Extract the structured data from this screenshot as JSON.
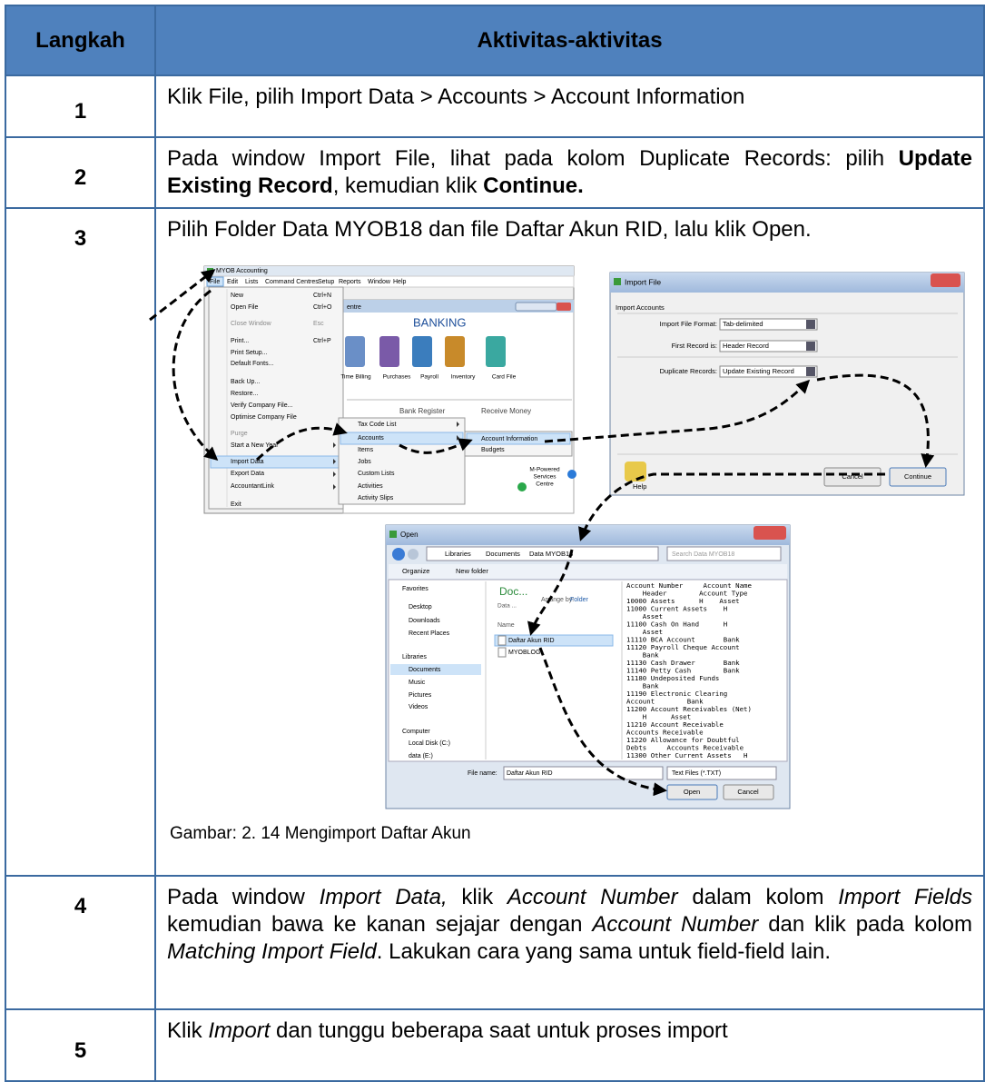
{
  "header": {
    "col1": "Langkah",
    "col2": "Aktivitas-aktivitas"
  },
  "rows": [
    {
      "step": "1",
      "content": [
        {
          "text": "Klik File, pilih Import Data > Accounts  > Account Information"
        }
      ]
    },
    {
      "step": "2",
      "content": [
        {
          "text": "Pada window Import File, lihat pada kolom Duplicate Records: pilih "
        },
        {
          "text": "Update Existing Record",
          "bold": true
        },
        {
          "text": ", kemudian klik "
        },
        {
          "text": "Continue.",
          "bold": true
        }
      ]
    },
    {
      "step": "3",
      "content": [
        {
          "text": "Pilih Folder Data MYOB18 dan file Daftar Akun RID, lalu klik Open."
        }
      ],
      "caption": "Gambar: 2. 14 Mengimport Daftar Akun"
    },
    {
      "step": "4",
      "content": [
        {
          "text": "Pada window "
        },
        {
          "text": "Import Data,",
          "italic": true
        },
        {
          "text": " klik "
        },
        {
          "text": "Account Number",
          "italic": true
        },
        {
          "text": " dalam kolom "
        },
        {
          "text": "Import Fields",
          "italic": true
        },
        {
          "text": " kemudian bawa ke kanan sejajar dengan "
        },
        {
          "text": "Account Number",
          "italic": true
        },
        {
          "text": " dan klik pada kolom "
        },
        {
          "text": "Matching Import Field",
          "italic": true
        },
        {
          "text": ". Lakukan cara yang sama untuk field-field lain."
        }
      ]
    },
    {
      "step": "5",
      "content": [
        {
          "text": "Klik "
        },
        {
          "text": "Import",
          "italic": true
        },
        {
          "text": " dan tunggu beberapa saat untuk proses import"
        }
      ]
    }
  ],
  "figure": {
    "myob": {
      "title": "MYOB Accounting",
      "menu": [
        "File",
        "Edit",
        "Lists",
        "Command Centres",
        "Setup",
        "Reports",
        "Window",
        "Help"
      ],
      "file_menu": [
        {
          "label": "New",
          "shortcut": "Ctrl+N"
        },
        {
          "label": "Open File",
          "shortcut": "Ctrl+O"
        },
        {
          "label": "Close Window",
          "shortcut": "Esc"
        },
        {
          "label": "Print...",
          "shortcut": "Ctrl+P"
        },
        {
          "label": "Print Setup..."
        },
        {
          "label": "Default Fonts..."
        },
        {
          "label": "Back Up..."
        },
        {
          "label": "Restore..."
        },
        {
          "label": "Verify Company File..."
        },
        {
          "label": "Optimise Company File"
        },
        {
          "label": "Purge"
        },
        {
          "label": "Start a New Year"
        },
        {
          "label": "Import Data"
        },
        {
          "label": "Export Data"
        },
        {
          "label": "AccountantLink"
        },
        {
          "label": "Exit"
        }
      ],
      "centre": "entre",
      "banking": "BANKING",
      "icons": [
        "Time Billing",
        "Purchases",
        "Payroll",
        "Inventory",
        "Card File"
      ],
      "bank_register": "Bank Register",
      "receive_money": "Receive Money",
      "import_menu": [
        "Tax Code List",
        "Accounts",
        "Items",
        "Jobs",
        "Custom Lists",
        "Activities",
        "Activity Slips"
      ],
      "accounts_menu": [
        "Account Information",
        "Budgets"
      ],
      "services": [
        "M-Powered",
        "Services",
        "Centre"
      ]
    },
    "import_file": {
      "title": "Import File",
      "section": "Import Accounts",
      "fields": [
        {
          "label": "Import File Format:",
          "value": "Tab-delimited"
        },
        {
          "label": "First Record is:",
          "value": "Header Record"
        },
        {
          "label": "Duplicate Records:",
          "value": "Update Existing Record"
        }
      ],
      "help": "Help",
      "cancel": "Cancel",
      "continue": "Continue"
    },
    "open": {
      "title": "Open",
      "path": [
        "Libraries",
        "Documents",
        "Data MYOB18"
      ],
      "search": "Search Data MYOB18",
      "organize": "Organize",
      "new_folder": "New folder",
      "nav": [
        "Favorites",
        "Desktop",
        "Downloads",
        "Recent Places",
        "Libraries",
        "Documents",
        "Music",
        "Pictures",
        "Videos",
        "Computer",
        "Local Disk (C:)",
        "data (E:)"
      ],
      "library": "Doc...",
      "library_sub": "Data ...",
      "arrange_by": "Arrange by:",
      "folder": "Folder",
      "name_col": "Name",
      "files": [
        "Daftar Akun RID",
        "MYOBLOG"
      ],
      "preview": [
        "Account Number     Account Name",
        "    Header        Account Type",
        "10000 Assets      H    Asset",
        "11000 Current Assets    H",
        "    Asset",
        "11100 Cash On Hand      H",
        "    Asset",
        "11110 BCA Account       Bank",
        "11120 Payroll Cheque Account",
        "    Bank",
        "11130 Cash Drawer       Bank",
        "11140 Petty Cash        Bank",
        "11180 Undeposited Funds",
        "    Bank",
        "11190 Electronic Clearing",
        "Account        Bank",
        "11200 Account Receivables (Net)",
        "    H      Asset",
        "11210 Account Receivable",
        "Accounts Receivable",
        "11220 Allowance for Doubtful",
        "Debts     Accounts Receivable",
        "11300 Other Current Assets   H"
      ],
      "file_name_label": "File name:",
      "file_name": "Daftar Akun RID",
      "filter": "Text Files (*.TXT)",
      "open_btn": "Open",
      "cancel_btn": "Cancel"
    }
  }
}
